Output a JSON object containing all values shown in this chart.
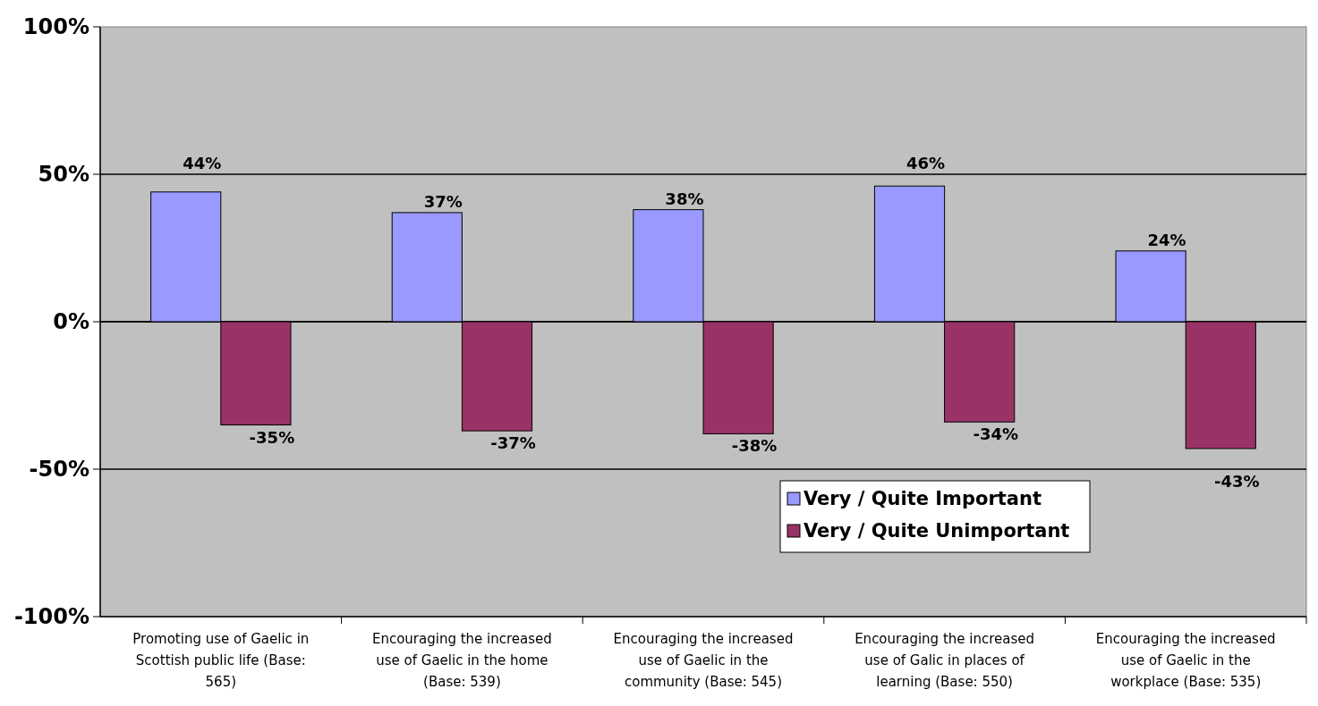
{
  "chart_data": {
    "type": "bar",
    "categories": [
      "Promoting use of Gaelic in Scottish public life (Base: 565)",
      "Encouraging the increased use of Gaelic in the home (Base: 539)",
      "Encouraging the increased use of Gaelic in the community (Base: 545)",
      "Encouraging the increased use of Galic in places of learning (Base: 550)",
      "Encouraging the increased use of Gaelic in the workplace (Base: 535)"
    ],
    "series": [
      {
        "name": "Very / Quite Important",
        "color": "#9999ff",
        "values": [
          44,
          37,
          38,
          46,
          24
        ],
        "value_labels": [
          "44%",
          "37%",
          "38%",
          "46%",
          "24%"
        ]
      },
      {
        "name": "Very / Quite Unimportant",
        "color": "#993366",
        "values": [
          -35,
          -37,
          -38,
          -34,
          -43
        ],
        "value_labels": [
          "-35%",
          "-37%",
          "-38%",
          "-34%",
          "-43%"
        ]
      }
    ],
    "ylim": [
      -100,
      100
    ],
    "yticks": [
      {
        "value": -100,
        "label": "-100%"
      },
      {
        "value": -50,
        "label": "-50%"
      },
      {
        "value": 0,
        "label": "0%"
      },
      {
        "value": 50,
        "label": "50%"
      },
      {
        "value": 100,
        "label": "100%"
      }
    ],
    "grid": "y",
    "legend": "bottom right"
  }
}
